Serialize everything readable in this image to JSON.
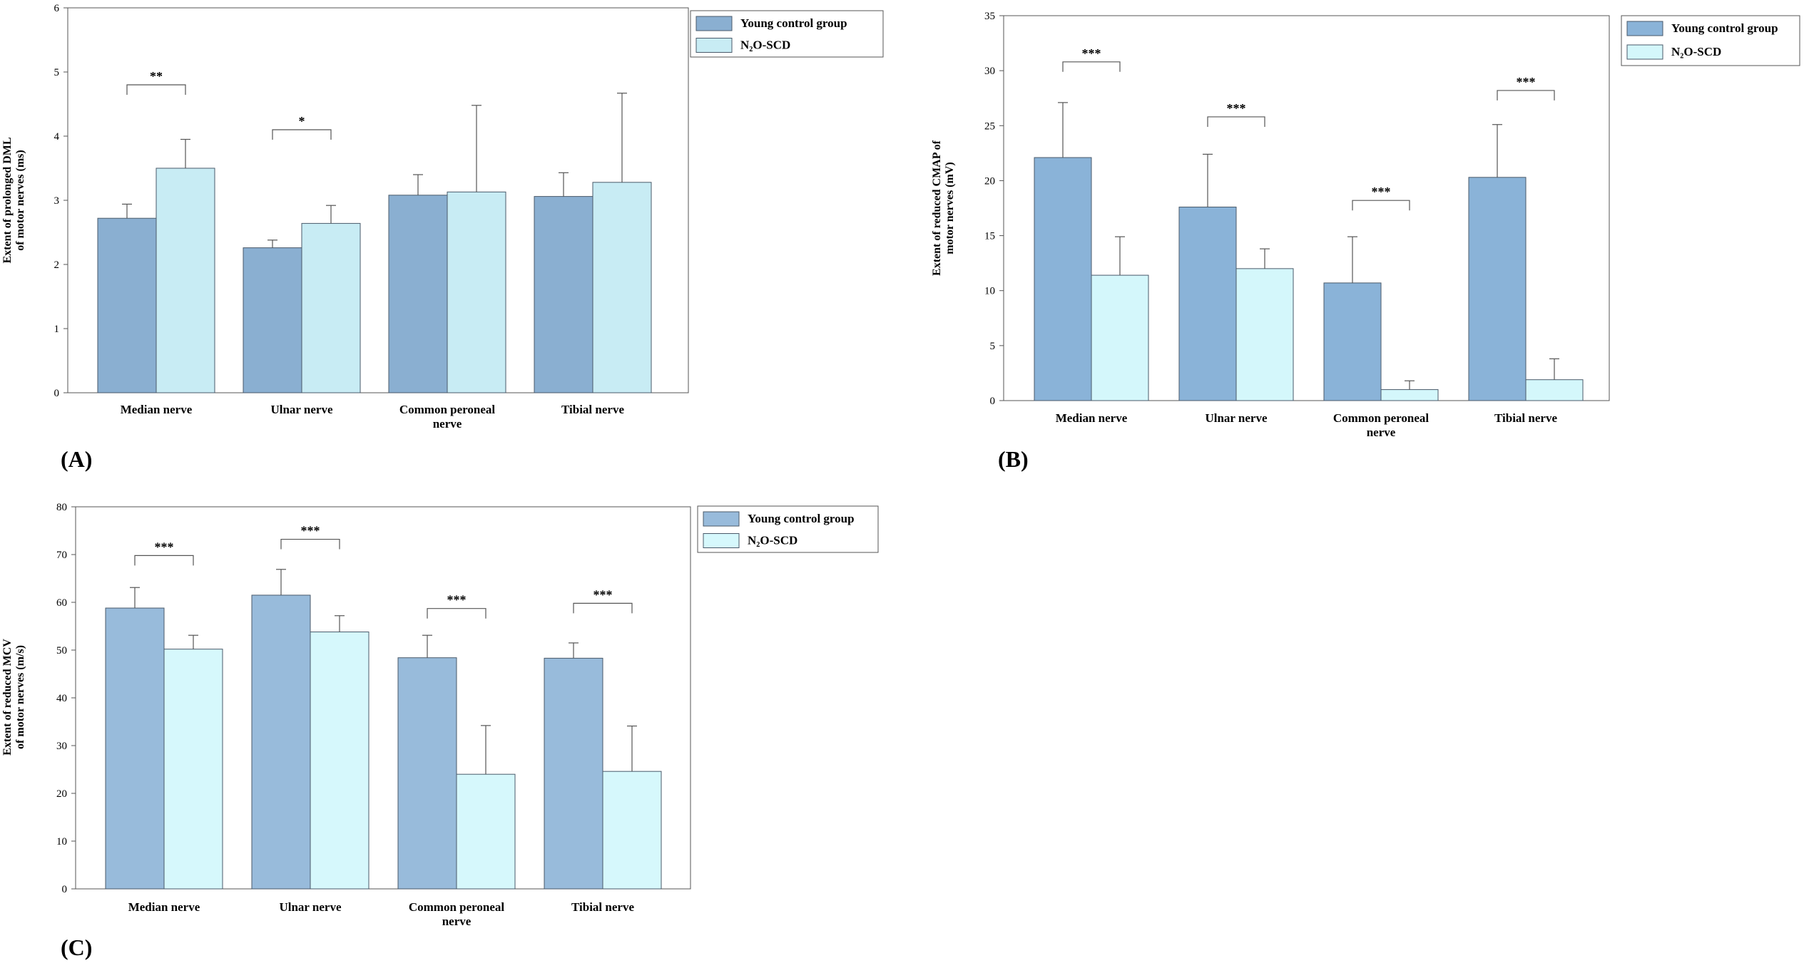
{
  "chart_data": [
    {
      "type": "bar",
      "panel": "(A)",
      "ylabel": [
        "Extent of prolonged DML",
        "of motor nerves (ms)"
      ],
      "categories": [
        [
          "Median nerve"
        ],
        [
          "Ulnar  nerve"
        ],
        [
          "Common  peroneal",
          "nerve"
        ],
        [
          "Tibial  nerve"
        ]
      ],
      "ylim": [
        0,
        6
      ],
      "ytick_step": 1,
      "series": [
        {
          "name": "Young control group",
          "color": "#8aafd1",
          "values": [
            2.72,
            2.26,
            3.08,
            3.06
          ],
          "errors": [
            0.22,
            0.12,
            0.32,
            0.37
          ]
        },
        {
          "name": "N₂O-SCD",
          "color": "#c8ecf4",
          "values": [
            3.5,
            2.64,
            3.13,
            3.28
          ],
          "errors": [
            0.45,
            0.28,
            1.35,
            1.39
          ]
        }
      ],
      "significance": [
        "**",
        "*",
        "",
        ""
      ],
      "sig_bracket_y": [
        4.8,
        4.1,
        null,
        null
      ],
      "legend_position": "top-right"
    },
    {
      "type": "bar",
      "panel": "(B)",
      "ylabel": [
        "Extent of reduced  CMAP of",
        "motor nerves (mV)"
      ],
      "categories": [
        [
          "Median nerve"
        ],
        [
          "Ulnar nerve"
        ],
        [
          "Common  peroneal",
          "nerve"
        ],
        [
          "Tibial nerve"
        ]
      ],
      "ylim": [
        0,
        35
      ],
      "ytick_step": 5,
      "series": [
        {
          "name": "Young control group",
          "color": "#8ab3d8",
          "values": [
            22.1,
            17.6,
            10.7,
            20.3
          ],
          "errors": [
            5.0,
            4.8,
            4.2,
            4.8
          ]
        },
        {
          "name": "N₂O-SCD",
          "color": "#d4f7fb",
          "values": [
            11.4,
            12.0,
            1.0,
            1.9
          ],
          "errors": [
            3.5,
            1.8,
            0.8,
            1.9
          ]
        }
      ],
      "significance": [
        "***",
        "***",
        "***",
        "***"
      ],
      "sig_bracket_y": [
        30.8,
        25.8,
        18.2,
        28.2
      ],
      "legend_position": "top-right"
    },
    {
      "type": "bar",
      "panel": "(C)",
      "ylabel": [
        "Extent of reduced  MCV",
        "of motor nerves (m/s)"
      ],
      "categories": [
        [
          "Median  nerve"
        ],
        [
          "Ulnar nerve"
        ],
        [
          "Common peroneal",
          "nerve"
        ],
        [
          "Tibial nerve"
        ]
      ],
      "ylim": [
        0,
        80
      ],
      "ytick_step": 10,
      "series": [
        {
          "name": "Young control group",
          "color": "#98bbdb",
          "values": [
            58.8,
            61.5,
            48.4,
            48.3
          ],
          "errors": [
            4.3,
            5.4,
            4.7,
            3.2
          ]
        },
        {
          "name": "N₂O-SCD",
          "color": "#d6f8fc",
          "values": [
            50.2,
            53.8,
            24.0,
            24.6
          ],
          "errors": [
            2.9,
            3.4,
            10.2,
            9.5
          ]
        }
      ],
      "significance": [
        "***",
        "***",
        "***",
        "***"
      ],
      "sig_bracket_y": [
        69.8,
        73.2,
        58.7,
        59.8
      ],
      "legend_position": "top-right"
    }
  ]
}
